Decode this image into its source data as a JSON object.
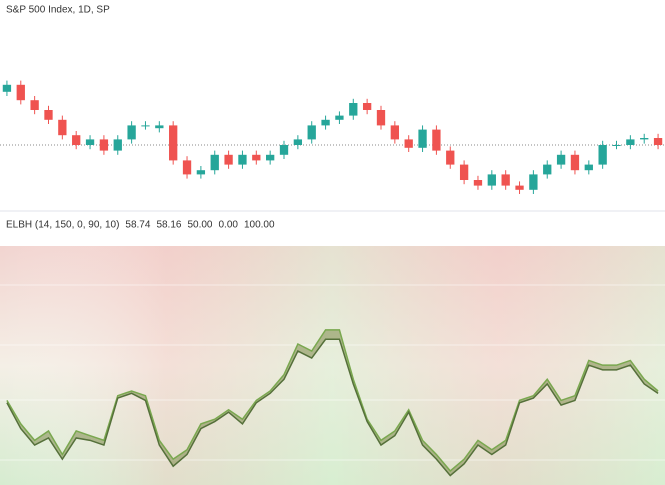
{
  "header": {
    "title": "S&P 500 Index, 1D, SP"
  },
  "price_chart": {
    "type": "candlestick",
    "ylim": [
      0,
      100
    ],
    "up_color": "#26a69a",
    "down_color": "#ef5350",
    "open": [
      88,
      93,
      82,
      75,
      68,
      57,
      50,
      54,
      46,
      54,
      64,
      62,
      64,
      39,
      29,
      32,
      43,
      36,
      43,
      39,
      43,
      50,
      54,
      64,
      68,
      71,
      80,
      75,
      64,
      54,
      48,
      61,
      46,
      36,
      25,
      21,
      29,
      21,
      18,
      29,
      36,
      43,
      32,
      36,
      50,
      50,
      54,
      55
    ],
    "close": [
      93,
      82,
      75,
      68,
      57,
      50,
      54,
      46,
      54,
      64,
      64,
      64,
      39,
      29,
      32,
      43,
      36,
      43,
      39,
      43,
      50,
      54,
      64,
      68,
      71,
      80,
      75,
      64,
      54,
      48,
      61,
      46,
      36,
      25,
      21,
      29,
      21,
      18,
      29,
      36,
      43,
      32,
      36,
      50,
      50,
      54,
      55,
      50
    ],
    "high": [
      96,
      96,
      85,
      78,
      71,
      60,
      57,
      57,
      57,
      67,
      67,
      67,
      67,
      42,
      35,
      46,
      46,
      46,
      46,
      46,
      53,
      57,
      67,
      71,
      74,
      83,
      83,
      78,
      67,
      57,
      64,
      64,
      49,
      39,
      28,
      32,
      32,
      24,
      32,
      39,
      46,
      46,
      39,
      53,
      53,
      57,
      58,
      58
    ],
    "low": [
      85,
      79,
      72,
      65,
      54,
      47,
      47,
      43,
      43,
      51,
      61,
      59,
      36,
      26,
      26,
      29,
      33,
      33,
      36,
      36,
      40,
      47,
      51,
      61,
      65,
      68,
      72,
      61,
      51,
      45,
      45,
      43,
      33,
      22,
      18,
      18,
      18,
      15,
      15,
      26,
      33,
      29,
      29,
      33,
      47,
      47,
      51,
      47
    ]
  },
  "indicator": {
    "type": "line",
    "name": "ELBH (14, 150, 0, 90, 10)",
    "ylim": [
      0,
      100
    ],
    "readouts": [
      {
        "value": 58.74,
        "label": "58.74",
        "color": "#6aa84f"
      },
      {
        "value": 58.16,
        "label": "58.16",
        "color": "#5b8fa8"
      },
      {
        "value": 50,
        "label": "50.00",
        "color": "#999999"
      },
      {
        "value": 0,
        "label": "0.00",
        "color": "#a0522d"
      },
      {
        "value": 100,
        "label": "100.00",
        "color": "#3d8f7a"
      }
    ],
    "series": [
      {
        "color": "#7aa84f",
        "values": [
          36,
          26,
          19,
          23,
          13,
          23,
          21,
          19,
          38,
          40,
          38,
          19,
          11,
          15,
          26,
          28,
          32,
          28,
          36,
          40,
          47,
          60,
          57,
          66,
          66,
          45,
          28,
          19,
          23,
          32,
          19,
          13,
          6,
          11,
          19,
          15,
          19,
          36,
          38,
          45,
          36,
          38,
          53,
          51,
          51,
          53,
          45,
          40
        ]
      },
      {
        "color": "#55703a",
        "values": [
          35,
          24,
          17,
          20,
          11,
          20,
          19,
          17,
          37,
          39,
          36,
          17,
          8,
          13,
          24,
          27,
          31,
          26,
          35,
          39,
          45,
          57,
          54,
          62,
          62,
          43,
          27,
          17,
          21,
          31,
          17,
          11,
          4,
          9,
          17,
          13,
          17,
          35,
          37,
          43,
          34,
          36,
          51,
          49,
          49,
          51,
          43,
          39
        ]
      }
    ]
  }
}
